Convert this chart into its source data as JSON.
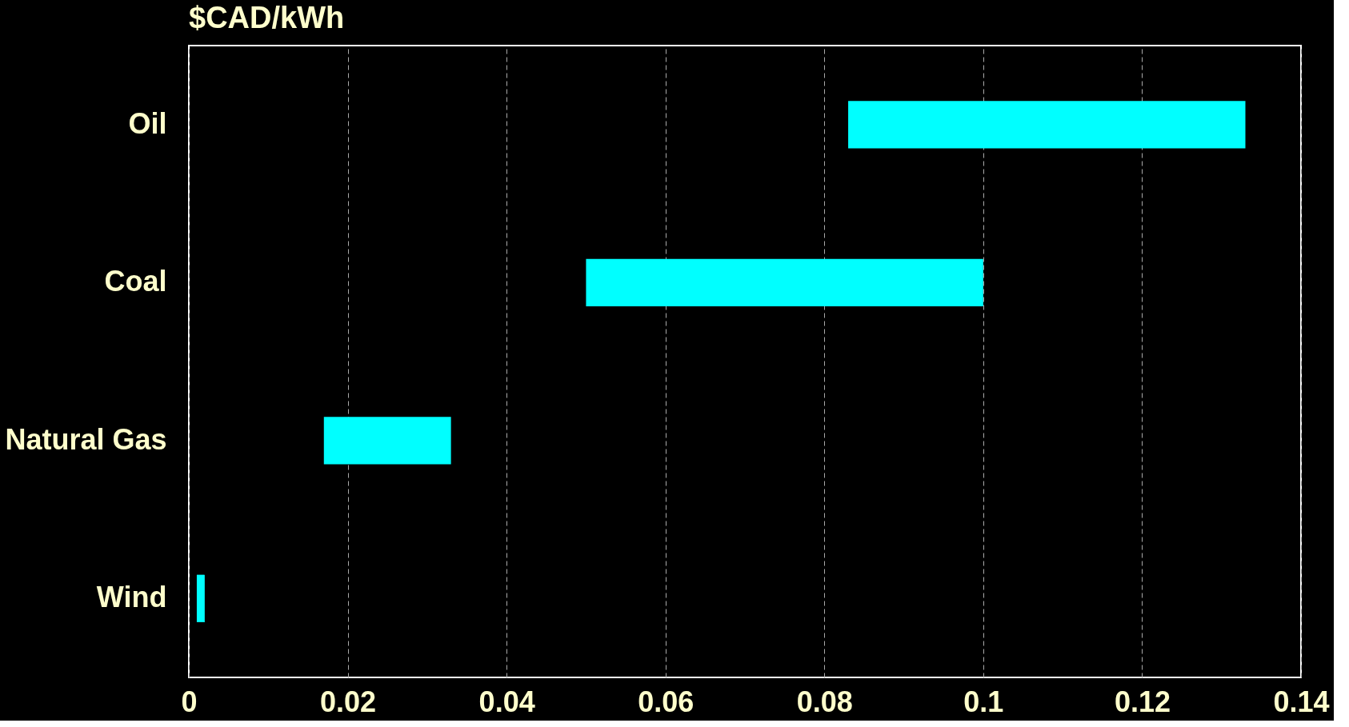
{
  "chart_data": {
    "type": "bar",
    "orientation": "horizontal",
    "title": "$CAD/kWh",
    "categories": [
      "Oil",
      "Coal",
      "Natural Gas",
      "Wind"
    ],
    "base": [
      0.083,
      0.05,
      0.017,
      0.001
    ],
    "values": [
      0.05,
      0.05,
      0.016,
      0.001
    ],
    "color": "#00ffff",
    "xlim": [
      0,
      0.14
    ],
    "xticks": [
      0,
      0.02,
      0.04,
      0.06,
      0.08,
      0.1,
      0.12,
      0.14
    ],
    "grid": "x"
  }
}
